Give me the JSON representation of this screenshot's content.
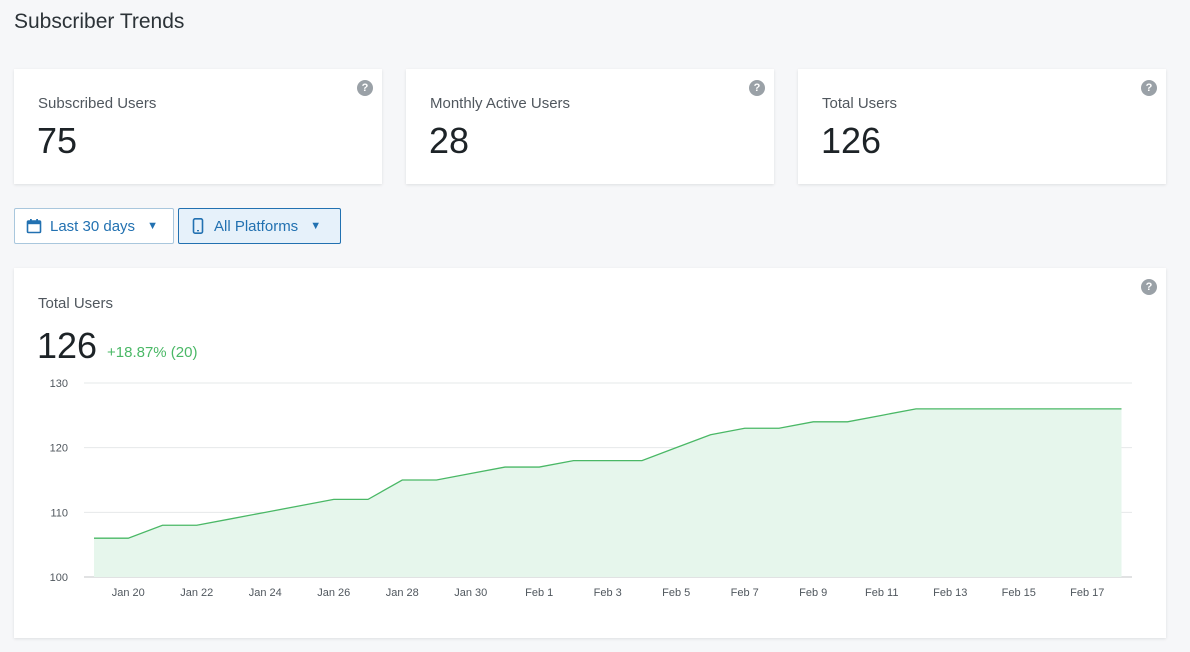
{
  "page": {
    "title": "Subscriber Trends"
  },
  "stats": [
    {
      "label": "Subscribed Users",
      "value": "75"
    },
    {
      "label": "Monthly Active Users",
      "value": "28"
    },
    {
      "label": "Total Users",
      "value": "126"
    }
  ],
  "help_glyph": "?",
  "filters": {
    "date_range": {
      "label": "Last 30 days",
      "icon": "calendar-icon"
    },
    "platform": {
      "label": "All Platforms",
      "icon": "mobile-icon"
    },
    "caret": "▼"
  },
  "colors": {
    "accent": "#2271b1",
    "line": "#4ab866",
    "area": "#e6f6ec",
    "positive": "#4ab866"
  },
  "chart_panel": {
    "label": "Total Users",
    "value": "126",
    "change": "+18.87% (20)"
  },
  "chart_data": {
    "type": "area",
    "title": "Total Users",
    "xlabel": "",
    "ylabel": "",
    "ylim": [
      100,
      130
    ],
    "yticks": [
      100,
      110,
      120,
      130
    ],
    "grid": true,
    "x": [
      "Jan 19",
      "Jan 20",
      "Jan 21",
      "Jan 22",
      "Jan 23",
      "Jan 24",
      "Jan 25",
      "Jan 26",
      "Jan 27",
      "Jan 28",
      "Jan 29",
      "Jan 30",
      "Jan 31",
      "Feb 1",
      "Feb 2",
      "Feb 3",
      "Feb 4",
      "Feb 5",
      "Feb 6",
      "Feb 7",
      "Feb 8",
      "Feb 9",
      "Feb 10",
      "Feb 11",
      "Feb 12",
      "Feb 13",
      "Feb 14",
      "Feb 15",
      "Feb 16",
      "Feb 17",
      "Feb 18"
    ],
    "xticks": [
      "Jan 20",
      "Jan 22",
      "Jan 24",
      "Jan 26",
      "Jan 28",
      "Jan 30",
      "Feb 1",
      "Feb 3",
      "Feb 5",
      "Feb 7",
      "Feb 9",
      "Feb 11",
      "Feb 13",
      "Feb 15",
      "Feb 17"
    ],
    "series": [
      {
        "values": [
          106,
          106,
          108,
          108,
          109,
          110,
          111,
          112,
          112,
          115,
          115,
          116,
          117,
          117,
          118,
          118,
          118,
          120,
          122,
          123,
          123,
          124,
          124,
          125,
          126,
          126,
          126,
          126,
          126,
          126,
          126
        ]
      }
    ]
  }
}
